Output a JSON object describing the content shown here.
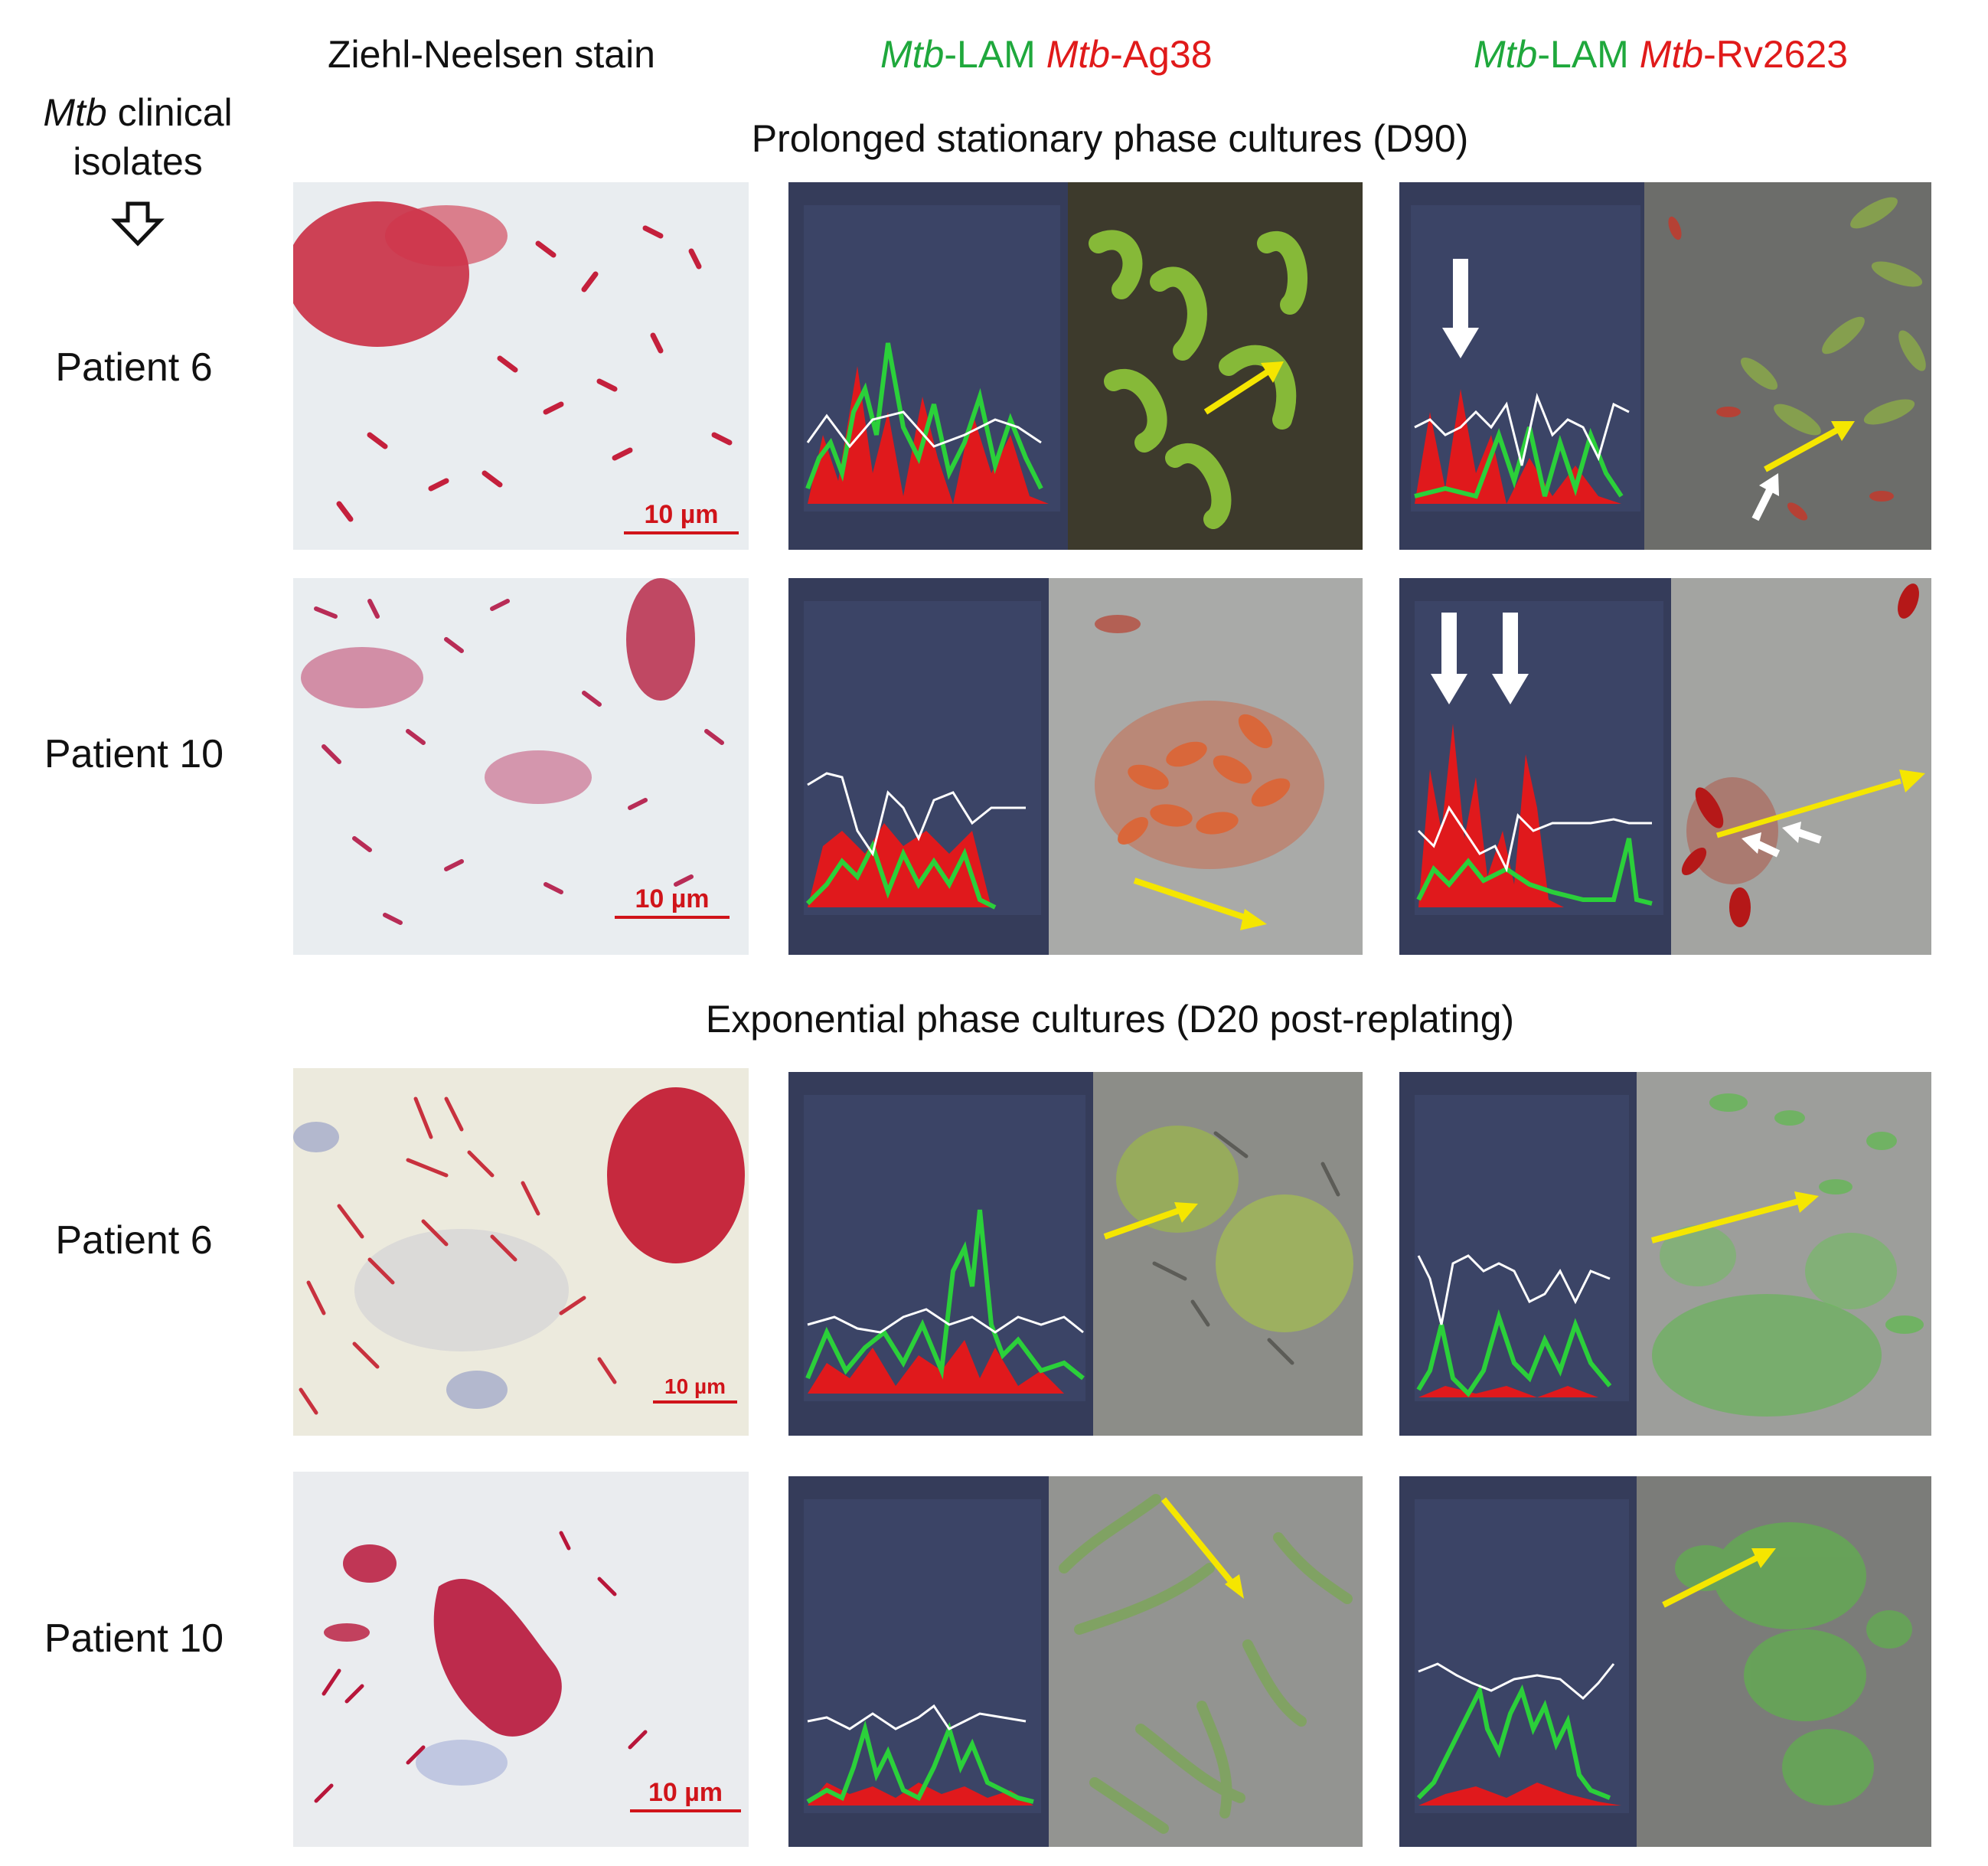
{
  "headers": {
    "zn": "Ziehl-Neelsen stain",
    "ag38": {
      "mtb1": "Mtb",
      "lam": "-LAM",
      "mtb2": "Mtb",
      "ag": "-Ag38"
    },
    "rv": {
      "mtb1": "Mtb",
      "lam": "-LAM",
      "mtb2": "Mtb",
      "ag": "-Rv2623"
    }
  },
  "left_header": {
    "line1_italic": "Mtb",
    "line1_rest": " clinical",
    "line2": "isolates"
  },
  "sections": {
    "d90": "Prolonged stationary phase cultures (D90)",
    "d20": "Exponential phase cultures (D20 post-replating)"
  },
  "rows": [
    {
      "patient": "Patient 6",
      "scale": "10 µm"
    },
    {
      "patient": "Patient 10",
      "scale": "10 µm"
    },
    {
      "patient": "Patient 6",
      "scale": "10 µm"
    },
    {
      "patient": "Patient 10",
      "scale": "10 µm"
    }
  ],
  "colors": {
    "green": "#1fa83c",
    "red": "#e01a1a",
    "arrow_yellow": "#f5e600",
    "chart_bg": "#353c5a"
  }
}
